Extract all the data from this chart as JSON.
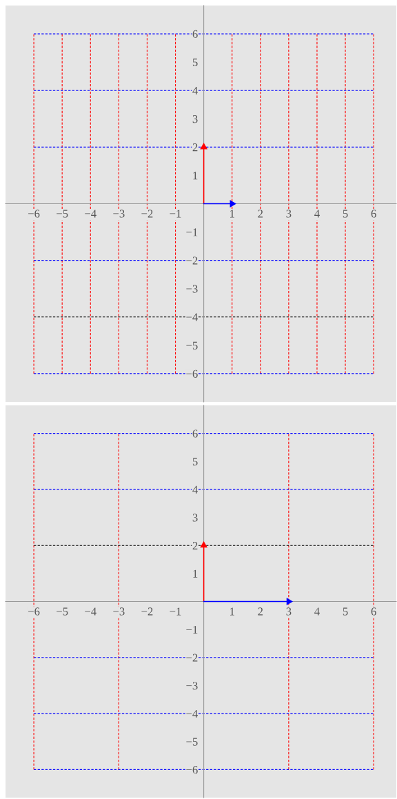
{
  "chart_data": [
    {
      "type": "line",
      "xlim": [
        -7,
        6.8
      ],
      "ylim": [
        -7,
        7
      ],
      "xticks": [
        -6,
        -5,
        -4,
        -3,
        -2,
        -1,
        1,
        2,
        3,
        4,
        5,
        6
      ],
      "yticks": [
        -6,
        -5,
        -4,
        -3,
        -2,
        -1,
        1,
        2,
        3,
        4,
        5,
        6
      ],
      "grid": false,
      "legend": false,
      "series": [
        {
          "color": "#ff0000",
          "line_style": "dashed",
          "x": [
            -6,
            -6
          ],
          "values": [
            -6,
            6
          ]
        },
        {
          "color": "#ff0000",
          "line_style": "dashed",
          "x": [
            -5,
            -5
          ],
          "values": [
            -6,
            6
          ]
        },
        {
          "color": "#ff0000",
          "line_style": "dashed",
          "x": [
            -4,
            -4
          ],
          "values": [
            -6,
            6
          ]
        },
        {
          "color": "#ff0000",
          "line_style": "dashed",
          "x": [
            -3,
            -3
          ],
          "values": [
            -6,
            6
          ]
        },
        {
          "color": "#ff0000",
          "line_style": "dashed",
          "x": [
            -2,
            -2
          ],
          "values": [
            -6,
            6
          ]
        },
        {
          "color": "#ff0000",
          "line_style": "dashed",
          "x": [
            -1,
            -1
          ],
          "values": [
            -6,
            6
          ]
        },
        {
          "color": "#ff0000",
          "line_style": "dashed",
          "x": [
            1,
            1
          ],
          "values": [
            -6,
            6
          ]
        },
        {
          "color": "#ff0000",
          "line_style": "dashed",
          "x": [
            2,
            2
          ],
          "values": [
            -6,
            6
          ]
        },
        {
          "color": "#ff0000",
          "line_style": "dashed",
          "x": [
            3,
            3
          ],
          "values": [
            -6,
            6
          ]
        },
        {
          "color": "#ff0000",
          "line_style": "dashed",
          "x": [
            4,
            4
          ],
          "values": [
            -6,
            6
          ]
        },
        {
          "color": "#ff0000",
          "line_style": "dashed",
          "x": [
            5,
            5
          ],
          "values": [
            -6,
            6
          ]
        },
        {
          "color": "#ff0000",
          "line_style": "dashed",
          "x": [
            6,
            6
          ],
          "values": [
            -6,
            6
          ]
        },
        {
          "color": "#0000ff",
          "line_style": "dashed",
          "x": [
            -6,
            6
          ],
          "values": [
            6,
            6
          ]
        },
        {
          "color": "#0000ff",
          "line_style": "dashed",
          "x": [
            -6,
            6
          ],
          "values": [
            4,
            4
          ]
        },
        {
          "color": "#0000ff",
          "line_style": "dashed",
          "x": [
            -6,
            6
          ],
          "values": [
            2,
            2
          ]
        },
        {
          "color": "#0000ff",
          "line_style": "dashed",
          "x": [
            -6,
            6
          ],
          "values": [
            -2,
            -2
          ]
        },
        {
          "color": "#000000",
          "line_style": "dashed",
          "x": [
            -6,
            6
          ],
          "values": [
            -4,
            -4
          ]
        },
        {
          "color": "#0000ff",
          "line_style": "dashed",
          "x": [
            -6,
            6
          ],
          "values": [
            -6,
            -6
          ]
        },
        {
          "color": "#ff0000",
          "line_style": "solid",
          "x": [
            0,
            0
          ],
          "values": [
            0,
            2
          ]
        },
        {
          "color": "#0000ff",
          "line_style": "solid",
          "x": [
            0,
            1
          ],
          "values": [
            0,
            0
          ]
        }
      ]
    },
    {
      "type": "line",
      "xlim": [
        -7,
        6.8
      ],
      "ylim": [
        -7,
        7
      ],
      "xticks": [
        -6,
        -5,
        -4,
        -3,
        -2,
        -1,
        1,
        2,
        3,
        4,
        5,
        6
      ],
      "yticks": [
        -6,
        -5,
        -4,
        -3,
        -2,
        -1,
        1,
        2,
        3,
        4,
        5,
        6
      ],
      "grid": false,
      "legend": false,
      "series": [
        {
          "color": "#ff0000",
          "line_style": "dashed",
          "x": [
            -6,
            -6
          ],
          "values": [
            -6,
            6
          ]
        },
        {
          "color": "#ff0000",
          "line_style": "dashed",
          "x": [
            -3,
            -3
          ],
          "values": [
            -6,
            6
          ]
        },
        {
          "color": "#ff0000",
          "line_style": "dashed",
          "x": [
            3,
            3
          ],
          "values": [
            -6,
            6
          ]
        },
        {
          "color": "#ff0000",
          "line_style": "dashed",
          "x": [
            6,
            6
          ],
          "values": [
            -6,
            6
          ]
        },
        {
          "color": "#0000ff",
          "line_style": "dashed",
          "x": [
            -6,
            6
          ],
          "values": [
            6,
            6
          ]
        },
        {
          "color": "#0000ff",
          "line_style": "dashed",
          "x": [
            -6,
            6
          ],
          "values": [
            4,
            4
          ]
        },
        {
          "color": "#000000",
          "line_style": "dashed",
          "x": [
            -6,
            6
          ],
          "values": [
            2,
            2
          ]
        },
        {
          "color": "#0000ff",
          "line_style": "dashed",
          "x": [
            -6,
            6
          ],
          "values": [
            -2,
            -2
          ]
        },
        {
          "color": "#0000ff",
          "line_style": "dashed",
          "x": [
            -6,
            6
          ],
          "values": [
            -4,
            -4
          ]
        },
        {
          "color": "#0000ff",
          "line_style": "dashed",
          "x": [
            -6,
            6
          ],
          "values": [
            -6,
            -6
          ]
        },
        {
          "color": "#ff0000",
          "line_style": "solid",
          "x": [
            0,
            0
          ],
          "values": [
            0,
            2
          ]
        },
        {
          "color": "#0000ff",
          "line_style": "solid",
          "x": [
            0,
            3
          ],
          "values": [
            0,
            0
          ]
        }
      ]
    }
  ]
}
